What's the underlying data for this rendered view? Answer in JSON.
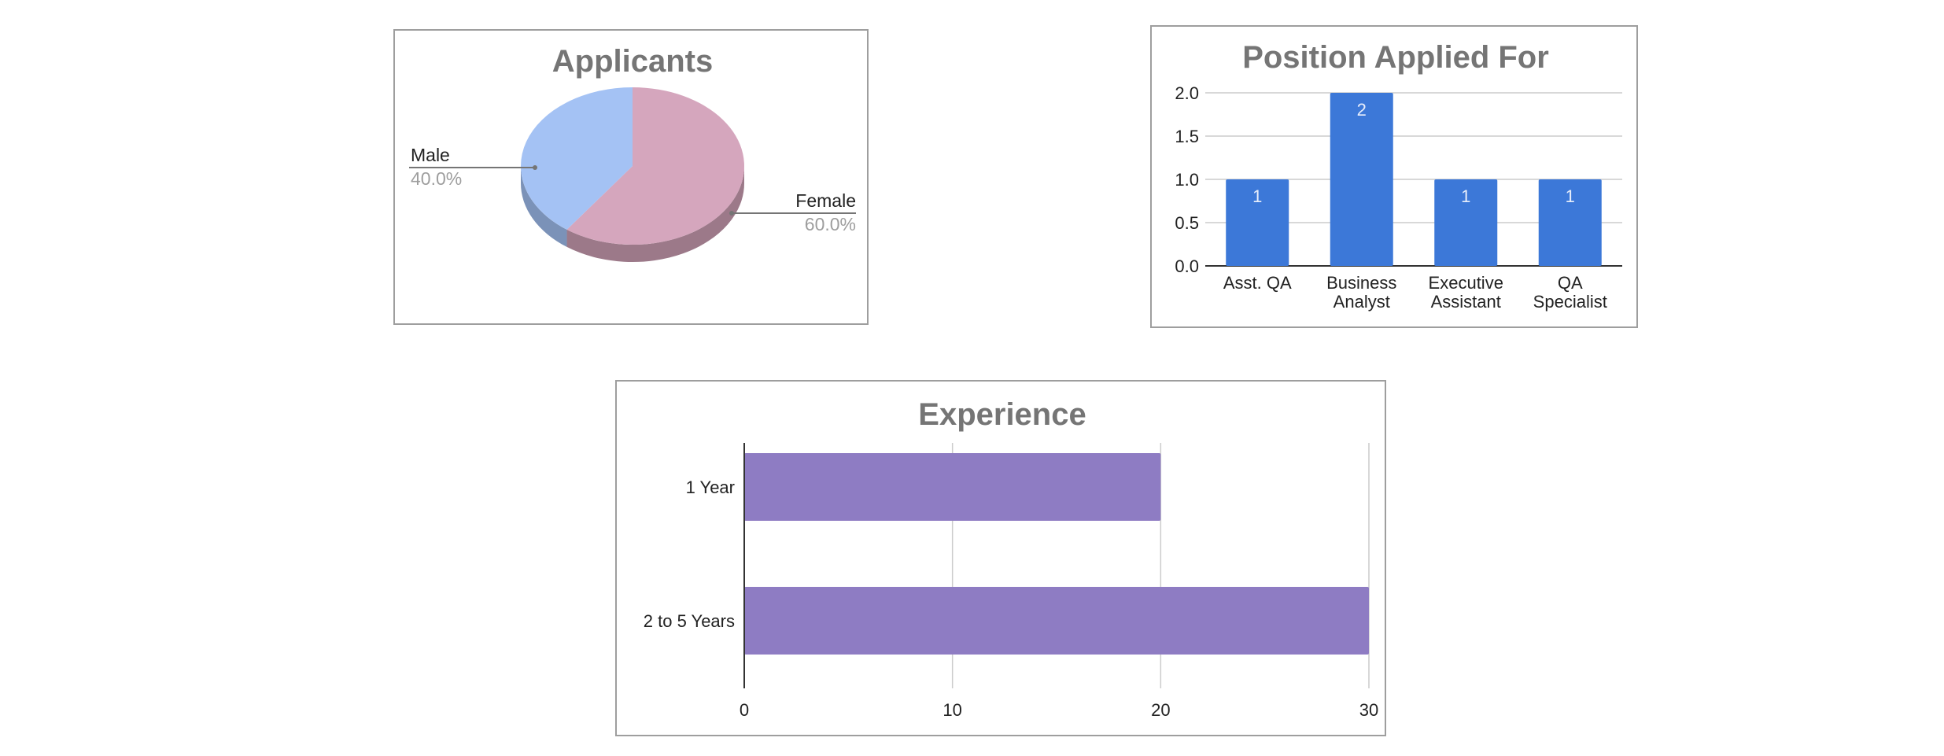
{
  "chart_data": [
    {
      "type": "pie",
      "title": "Applicants",
      "slices": [
        {
          "label": "Male",
          "percent": "40.0%",
          "value": 40.0,
          "color": "#a4c2f4",
          "side": "#7b92b8"
        },
        {
          "label": "Female",
          "percent": "60.0%",
          "value": 60.0,
          "color": "#d5a6bd",
          "side": "#9c7989"
        }
      ]
    },
    {
      "type": "bar",
      "title": "Position Applied For",
      "categories": [
        "Asst. QA",
        "Business Analyst",
        "Executive Assistant",
        "QA Specialist"
      ],
      "category_lines": [
        [
          "Asst. QA"
        ],
        [
          "Business",
          "Analyst"
        ],
        [
          "Executive",
          "Assistant"
        ],
        [
          "QA",
          "Specialist"
        ]
      ],
      "values": [
        1,
        2,
        1,
        1
      ],
      "data_labels": [
        "1",
        "2",
        "1",
        "1"
      ],
      "ylim": [
        0,
        2
      ],
      "yticks": [
        "0.0",
        "0.5",
        "1.0",
        "1.5",
        "2.0"
      ],
      "grid": true,
      "color": "#3c78d8"
    },
    {
      "type": "bar",
      "orientation": "horizontal",
      "title": "Experience",
      "categories": [
        "1 Year",
        "2 to 5 Years"
      ],
      "values": [
        20,
        30
      ],
      "xlim": [
        0,
        30
      ],
      "xticks": [
        "0",
        "10",
        "20",
        "30"
      ],
      "grid": true,
      "color": "#8e7cc3"
    }
  ]
}
